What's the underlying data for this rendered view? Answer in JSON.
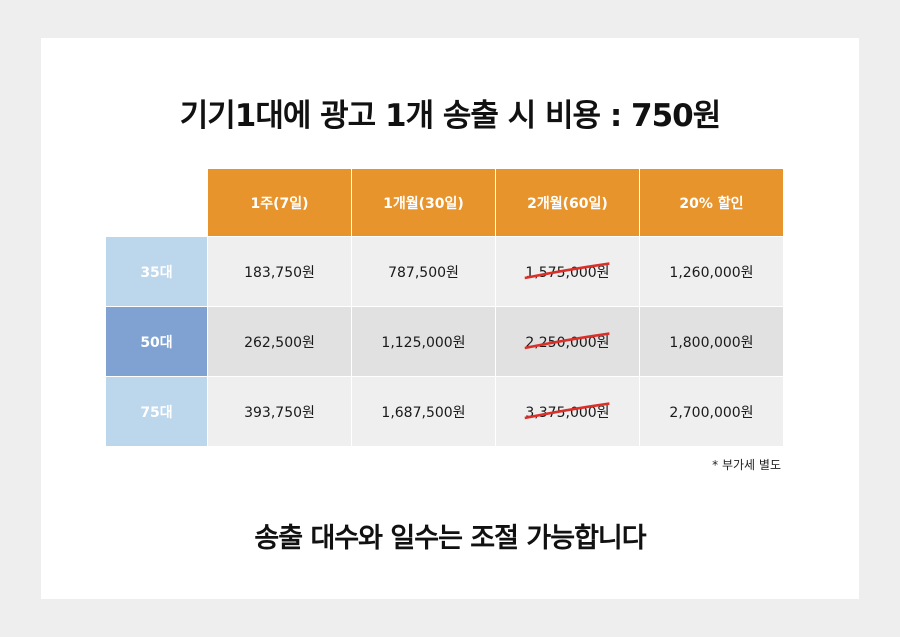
{
  "title": "기기1대에 광고 1개 송출 시 비용 : 750원",
  "table": {
    "headers": [
      "1주(7일)",
      "1개월(30일)",
      "2개월(60일)",
      "20% 할인"
    ],
    "rows": [
      {
        "label": "35대",
        "values": [
          "183,750원",
          "787,500원",
          "1,575,000원",
          "1,260,000원"
        ]
      },
      {
        "label": "50대",
        "values": [
          "262,500원",
          "1,125,000원",
          "2,250,000원",
          "1,800,000원"
        ]
      },
      {
        "label": "75대",
        "values": [
          "393,750원",
          "1,687,500원",
          "3,375,000원",
          "2,700,000원"
        ]
      }
    ]
  },
  "note": "* 부가세 별도",
  "footer": "송출 대수와 일수는 조절 가능합니다",
  "colors": {
    "header": "#e8942c",
    "row_label_light": "#bcd6ec",
    "row_label_dark": "#7fa2d2",
    "strike": "#d9302a"
  }
}
